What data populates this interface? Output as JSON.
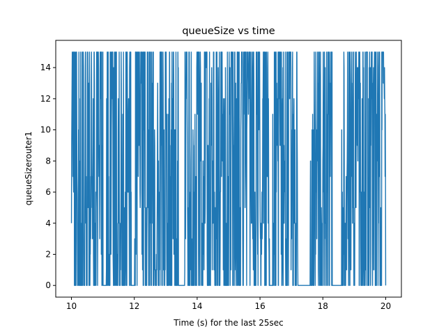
{
  "chart_data": {
    "type": "line",
    "title": "queueSize vs time",
    "xlabel": "Time (s) for the last 25sec",
    "ylabel": "queueSizerouter1",
    "xlim": [
      9.5,
      20.5
    ],
    "ylim": [
      -0.75,
      15.75
    ],
    "x_ticks": [
      10,
      12,
      14,
      16,
      18,
      20
    ],
    "x_tick_labels": [
      "10",
      "12",
      "14",
      "16",
      "18",
      "20"
    ],
    "y_ticks": [
      0,
      2,
      4,
      6,
      8,
      10,
      12,
      14
    ],
    "y_tick_labels": [
      "0",
      "2",
      "4",
      "6",
      "8",
      "10",
      "12",
      "14"
    ],
    "grid": false,
    "legend": "none",
    "color": "#1f77b4",
    "series": [
      {
        "x_range": [
          10,
          20
        ],
        "points_per_second": 160,
        "value_range": [
          0,
          15
        ],
        "active_intervals": [
          [
            10.0,
            11.0
          ],
          [
            11.1,
            11.9
          ],
          [
            12.0,
            13.4
          ],
          [
            13.6,
            16.3
          ],
          [
            16.4,
            17.2
          ],
          [
            17.6,
            18.3
          ],
          [
            18.6,
            20.0
          ]
        ],
        "idle_intervals": [
          [
            11.0,
            11.1
          ],
          [
            11.9,
            12.0
          ],
          [
            13.4,
            13.6
          ],
          [
            16.3,
            16.4
          ],
          [
            17.2,
            17.6
          ],
          [
            18.3,
            18.6
          ]
        ],
        "idle_value": 0
      }
    ]
  }
}
